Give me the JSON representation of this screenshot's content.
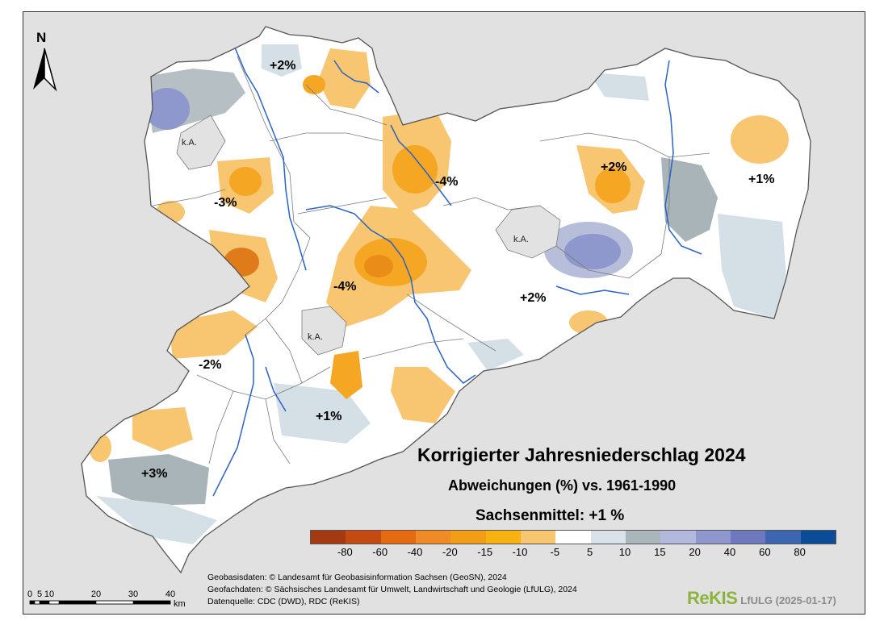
{
  "map": {
    "north_label": "N",
    "title": "Korrigierter Jahresniederschlag 2024",
    "subtitle": "Abweichungen (%) vs. 1961-1990",
    "mean": "Sachsenmittel: +1 %",
    "region_labels": [
      "+2%",
      "-3%",
      "-4%",
      "-4%",
      "+2%",
      "+1%",
      "+2%",
      "-2%",
      "+1%",
      "+3%"
    ],
    "no_data_labels": [
      "k.A.",
      "k.A.",
      "k.A."
    ],
    "colors": {
      "background": "#e1e1e1",
      "land": "#ffffff",
      "river": "#2a63c4",
      "border": "#7a7a7a",
      "orange_light": "#f8c570",
      "orange_mid": "#f5a623",
      "orange_dark": "#e07b1a",
      "grey_blue": "#a9b4b8",
      "light_blue": "#d4dfe6",
      "purple_blue": "#8f98cc"
    }
  },
  "legend": {
    "swatches": [
      "#a33a12",
      "#c44a12",
      "#e56a10",
      "#ef8a24",
      "#f39d16",
      "#f7b20f",
      "#f8c570",
      "#ffffff",
      "#d8e2e8",
      "#a9b6ba",
      "#b3b9dc",
      "#8f98cc",
      "#6e78bd",
      "#3d66b0",
      "#0b4c99"
    ],
    "ticks": [
      "-80",
      "-60",
      "-40",
      "-20",
      "-15",
      "-10",
      "-5",
      "5",
      "10",
      "15",
      "20",
      "40",
      "60",
      "80"
    ]
  },
  "scale_bar": {
    "labels": [
      "0",
      "5",
      "10",
      "20",
      "30",
      "40"
    ],
    "unit": "km"
  },
  "credits": [
    "Geobasisdaten: © Landesamt für Geobasisinformation Sachsen (GeoSN), 2024",
    "Geofachdaten: © Sächsisches Landesamt für Umwelt, Landwirtschaft und Geologie (LfULG), 2024",
    "Datenquelle: CDC (DWD), RDC (ReKIS)"
  ],
  "branding": {
    "logo": "ReKIS",
    "subtitle": "LfULG (2025-01-17)"
  }
}
